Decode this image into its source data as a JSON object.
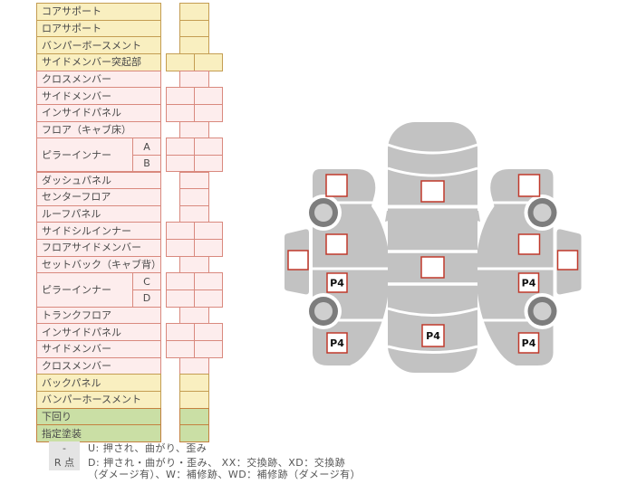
{
  "parts_table": {
    "rows": [
      {
        "label": "コアサポート",
        "color": "yellow",
        "cells": "single"
      },
      {
        "label": "ロアサポート",
        "color": "yellow",
        "cells": "single"
      },
      {
        "label": "バンパーボースメント",
        "color": "yellow",
        "cells": "single"
      },
      {
        "label": "サイドメンバー突起部",
        "color": "yellow",
        "cells": "double"
      },
      {
        "label": "クロスメンバー",
        "color": "pink",
        "cells": "single"
      },
      {
        "label": "サイドメンバー",
        "color": "pink",
        "cells": "double"
      },
      {
        "label": "インサイドパネル",
        "color": "pink",
        "cells": "double"
      },
      {
        "label": "フロア（キャブ床）",
        "color": "pink",
        "cells": "single"
      },
      {
        "label": "ピラーインナー",
        "sub": "A",
        "group_start": true,
        "color": "pink",
        "cells": "double"
      },
      {
        "sub": "B",
        "color": "pink",
        "cells": "double"
      },
      {
        "label": "ダッシュパネル",
        "color": "pink",
        "cells": "single"
      },
      {
        "label": "センターフロア",
        "color": "pink",
        "cells": "single"
      },
      {
        "label": "ルーフパネル",
        "color": "pink",
        "cells": "single"
      },
      {
        "label": "サイドシルインナー",
        "color": "pink",
        "cells": "double"
      },
      {
        "label": "フロアサイドメンバー",
        "color": "pink",
        "cells": "double"
      },
      {
        "label": "セットバック（キャブ背）",
        "color": "pink",
        "cells": "single"
      },
      {
        "label": "ピラーインナー",
        "sub": "C",
        "group_start": true,
        "color": "pink",
        "cells": "double"
      },
      {
        "sub": "D",
        "color": "pink",
        "cells": "double"
      },
      {
        "label": "トランクフロア",
        "color": "pink",
        "cells": "single"
      },
      {
        "label": "インサイドパネル",
        "color": "pink",
        "cells": "double"
      },
      {
        "label": "サイドメンバー",
        "color": "pink",
        "cells": "double"
      },
      {
        "label": "クロスメンバー",
        "color": "pink",
        "cells": "single"
      },
      {
        "label": "バックパネル",
        "color": "yellow",
        "cells": "single"
      },
      {
        "label": "バンパーホースメント",
        "color": "yellow",
        "cells": "single"
      },
      {
        "label": "下回り",
        "color": "green",
        "cells": "single"
      },
      {
        "label": "指定塗装",
        "color": "green",
        "cells": "single"
      }
    ]
  },
  "diagram": {
    "left_side": {
      "rear_door_marker": "P4",
      "rear_fender_marker": "P4"
    },
    "top_view": {
      "trunk_marker": "P4"
    },
    "right_side": {
      "rear_door_marker": "P4",
      "rear_fender_marker": "P4"
    }
  },
  "legend": {
    "rows": [
      {
        "badge": "-",
        "text": "U: 押され、曲がり、歪み"
      },
      {
        "badge": "R 点",
        "text": "D: 押され・曲がり・歪み、 XX：交換跡、XD：交換跡"
      },
      {
        "badge": "",
        "text": "（ダメージ有）、W：補修跡、WD：補修跡（ダメージ有）"
      }
    ]
  },
  "colors": {
    "yellow_bg": "#f9efc0",
    "pink_bg": "#fdeded",
    "green_bg": "#cadfa5",
    "marker_border": "#c0392b",
    "body_grey": "#c2c2c2"
  }
}
